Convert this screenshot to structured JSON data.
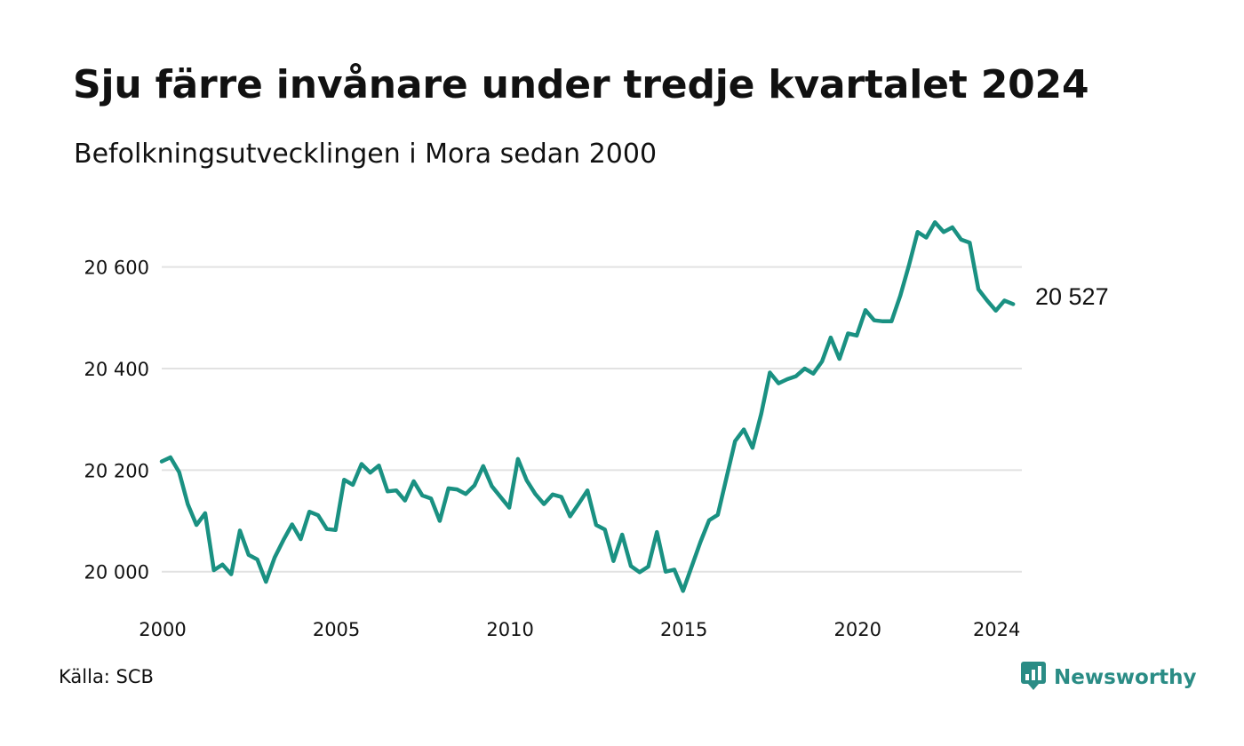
{
  "title": "Sju färre invånare under tredje kvartalet 2024",
  "subtitle": "Befolkningsutvecklingen i Mora sedan 2000",
  "source": "Källa: SCB",
  "brand": {
    "name": "Newsworthy",
    "icon": "newsworthy-logo-icon"
  },
  "colors": {
    "line": "#1a9182",
    "grid": "#e2e2e2",
    "text": "#111111",
    "brand": "#2a8c85"
  },
  "chart_data": {
    "type": "line",
    "title": "Sju färre invånare under tredje kvartalet 2024",
    "subtitle": "Befolkningsutvecklingen i Mora sedan 2000",
    "xlabel": "",
    "ylabel": "",
    "xlim": [
      2000,
      2024.75
    ],
    "ylim": [
      19940,
      20720
    ],
    "x_ticks": [
      {
        "value": 2000,
        "label": "2000"
      },
      {
        "value": 2005,
        "label": "2005"
      },
      {
        "value": 2010,
        "label": "2010"
      },
      {
        "value": 2015,
        "label": "2015"
      },
      {
        "value": 2020,
        "label": "2020"
      },
      {
        "value": 2024,
        "label": "2024"
      }
    ],
    "y_ticks": [
      {
        "value": 20000,
        "label": "20 000"
      },
      {
        "value": 20200,
        "label": "20 200"
      },
      {
        "value": 20400,
        "label": "20 400"
      },
      {
        "value": 20600,
        "label": "20 600"
      }
    ],
    "grid": "horizontal",
    "end_label": "20 527",
    "series": [
      {
        "x": [
          2000.0,
          2000.25,
          2000.5,
          2000.75,
          2001.0,
          2001.25,
          2001.5,
          2001.75,
          2002.0,
          2002.25,
          2002.5,
          2002.75,
          2003.0,
          2003.25,
          2003.5,
          2003.75,
          2004.0,
          2004.25,
          2004.5,
          2004.75,
          2005.0,
          2005.25,
          2005.5,
          2005.75,
          2006.0,
          2006.25,
          2006.5,
          2006.75,
          2007.0,
          2007.25,
          2007.5,
          2007.75,
          2008.0,
          2008.25,
          2008.5,
          2008.75,
          2009.0,
          2009.25,
          2009.5,
          2009.75,
          2010.0,
          2010.25,
          2010.5,
          2010.75,
          2011.0,
          2011.25,
          2011.5,
          2011.75,
          2012.0,
          2012.25,
          2012.5,
          2012.75,
          2013.0,
          2013.25,
          2013.5,
          2013.75,
          2014.0,
          2014.25,
          2014.5,
          2014.75,
          2015.0,
          2015.25,
          2015.5,
          2015.75,
          2016.0,
          2016.25,
          2016.5,
          2016.75,
          2017.0,
          2017.25,
          2017.5,
          2017.75,
          2018.0,
          2018.25,
          2018.5,
          2018.75,
          2019.0,
          2019.25,
          2019.5,
          2019.75,
          2020.0,
          2020.25,
          2020.5,
          2020.75,
          2021.0,
          2021.25,
          2021.5,
          2021.75,
          2022.0,
          2022.25,
          2022.5,
          2022.75,
          2023.0,
          2023.25,
          2023.5,
          2023.75,
          2024.0,
          2024.25,
          2024.5
        ],
        "values": [
          20217,
          20225,
          20196,
          20133,
          20092,
          20115,
          20003,
          20014,
          19995,
          20081,
          20033,
          20024,
          19980,
          20028,
          20062,
          20093,
          20064,
          20118,
          20111,
          20084,
          20082,
          20181,
          20171,
          20212,
          20195,
          20209,
          20158,
          20160,
          20140,
          20178,
          20150,
          20144,
          20100,
          20164,
          20162,
          20153,
          20170,
          20208,
          20168,
          20147,
          20126,
          20222,
          20180,
          20153,
          20133,
          20152,
          20147,
          20109,
          20134,
          20160,
          20092,
          20083,
          20021,
          20073,
          20011,
          19999,
          20010,
          20078,
          20000,
          20004,
          19962,
          20010,
          20058,
          20101,
          20112,
          20185,
          20257,
          20280,
          20244,
          20311,
          20392,
          20371,
          20379,
          20385,
          20400,
          20390,
          20414,
          20461,
          20419,
          20469,
          20465,
          20515,
          20495,
          20493,
          20493,
          20543,
          20603,
          20669,
          20658,
          20688,
          20669,
          20678,
          20654,
          20648,
          20556,
          20534,
          20514,
          20534,
          20527
        ]
      }
    ]
  }
}
